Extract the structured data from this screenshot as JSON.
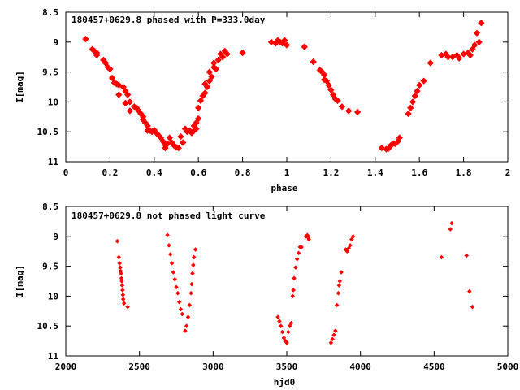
{
  "chart_data": [
    {
      "type": "scatter",
      "title": "180457+0629.8 phased with P=333.0day",
      "xlabel": "phase",
      "ylabel": "I[mag]",
      "xlim": [
        0,
        2
      ],
      "ylim": [
        8.5,
        11
      ],
      "y_inverted": true,
      "x_ticks": [
        "0",
        "0.2",
        "0.4",
        "0.6",
        "0.8",
        "1",
        "1.2",
        "1.4",
        "1.6",
        "1.8",
        "2"
      ],
      "y_ticks": [
        "8.5",
        "9",
        "9.5",
        "10",
        "10.5",
        "11"
      ],
      "grid": false,
      "marker_color": "#ff0000",
      "marker": "diamond-large",
      "series": [
        {
          "points": [
            [
              0.09,
              8.95
            ],
            [
              0.12,
              9.12
            ],
            [
              0.13,
              9.15
            ],
            [
              0.14,
              9.18
            ],
            [
              0.14,
              9.22
            ],
            [
              0.17,
              9.3
            ],
            [
              0.18,
              9.35
            ],
            [
              0.19,
              9.42
            ],
            [
              0.2,
              9.45
            ],
            [
              0.21,
              9.6
            ],
            [
              0.22,
              9.68
            ],
            [
              0.23,
              9.7
            ],
            [
              0.24,
              9.72
            ],
            [
              0.24,
              9.88
            ],
            [
              0.26,
              9.75
            ],
            [
              0.27,
              9.82
            ],
            [
              0.27,
              10.02
            ],
            [
              0.28,
              9.88
            ],
            [
              0.29,
              10.0
            ],
            [
              0.29,
              10.15
            ],
            [
              0.31,
              10.08
            ],
            [
              0.32,
              10.1
            ],
            [
              0.33,
              10.15
            ],
            [
              0.34,
              10.2
            ],
            [
              0.35,
              10.25
            ],
            [
              0.35,
              10.3
            ],
            [
              0.36,
              10.35
            ],
            [
              0.37,
              10.4
            ],
            [
              0.37,
              10.48
            ],
            [
              0.38,
              10.48
            ],
            [
              0.39,
              10.5
            ],
            [
              0.4,
              10.47
            ],
            [
              0.41,
              10.52
            ],
            [
              0.42,
              10.56
            ],
            [
              0.43,
              10.6
            ],
            [
              0.44,
              10.66
            ],
            [
              0.45,
              10.72
            ],
            [
              0.45,
              10.77
            ],
            [
              0.46,
              10.7
            ],
            [
              0.47,
              10.6
            ],
            [
              0.48,
              10.68
            ],
            [
              0.49,
              10.73
            ],
            [
              0.5,
              10.76
            ],
            [
              0.51,
              10.77
            ],
            [
              0.52,
              10.58
            ],
            [
              0.53,
              10.68
            ],
            [
              0.54,
              10.45
            ],
            [
              0.55,
              10.5
            ],
            [
              0.56,
              10.48
            ],
            [
              0.57,
              10.52
            ],
            [
              0.58,
              10.48
            ],
            [
              0.58,
              10.4
            ],
            [
              0.59,
              10.45
            ],
            [
              0.59,
              10.35
            ],
            [
              0.6,
              10.28
            ],
            [
              0.6,
              10.1
            ],
            [
              0.61,
              9.98
            ],
            [
              0.62,
              9.9
            ],
            [
              0.63,
              9.85
            ],
            [
              0.63,
              9.7
            ],
            [
              0.64,
              9.75
            ],
            [
              0.65,
              9.65
            ],
            [
              0.65,
              9.5
            ],
            [
              0.66,
              9.58
            ],
            [
              0.67,
              9.42
            ],
            [
              0.67,
              9.35
            ],
            [
              0.68,
              9.45
            ],
            [
              0.69,
              9.3
            ],
            [
              0.7,
              9.2
            ],
            [
              0.71,
              9.25
            ],
            [
              0.72,
              9.15
            ],
            [
              0.73,
              9.2
            ],
            [
              0.8,
              9.18
            ],
            [
              0.93,
              9.0
            ],
            [
              0.95,
              9.02
            ],
            [
              0.96,
              8.97
            ],
            [
              0.97,
              9.0
            ],
            [
              0.98,
              9.02
            ],
            [
              0.99,
              8.97
            ],
            [
              1.0,
              9.05
            ],
            [
              1.08,
              9.08
            ],
            [
              1.12,
              9.33
            ],
            [
              1.15,
              9.47
            ],
            [
              1.16,
              9.5
            ],
            [
              1.17,
              9.55
            ],
            [
              1.17,
              9.63
            ],
            [
              1.18,
              9.65
            ],
            [
              1.19,
              9.72
            ],
            [
              1.2,
              9.8
            ],
            [
              1.21,
              9.88
            ],
            [
              1.22,
              9.95
            ],
            [
              1.23,
              9.98
            ],
            [
              1.25,
              10.08
            ],
            [
              1.28,
              10.15
            ],
            [
              1.32,
              10.17
            ],
            [
              1.43,
              10.77
            ],
            [
              1.45,
              10.79
            ],
            [
              1.46,
              10.78
            ],
            [
              1.47,
              10.73
            ],
            [
              1.48,
              10.7
            ],
            [
              1.49,
              10.7
            ],
            [
              1.5,
              10.67
            ],
            [
              1.51,
              10.6
            ],
            [
              1.55,
              10.2
            ],
            [
              1.56,
              10.1
            ],
            [
              1.57,
              10.0
            ],
            [
              1.58,
              9.9
            ],
            [
              1.59,
              9.82
            ],
            [
              1.6,
              9.72
            ],
            [
              1.62,
              9.65
            ],
            [
              1.65,
              9.35
            ],
            [
              1.7,
              9.22
            ],
            [
              1.72,
              9.2
            ],
            [
              1.73,
              9.25
            ],
            [
              1.75,
              9.25
            ],
            [
              1.77,
              9.22
            ],
            [
              1.78,
              9.27
            ],
            [
              1.8,
              9.2
            ],
            [
              1.82,
              9.18
            ],
            [
              1.83,
              9.22
            ],
            [
              1.84,
              9.12
            ],
            [
              1.85,
              9.05
            ],
            [
              1.86,
              8.85
            ],
            [
              1.87,
              9.0
            ],
            [
              1.88,
              8.68
            ]
          ]
        }
      ]
    },
    {
      "type": "scatter",
      "title": "180457+0629.8 not phased light curve",
      "xlabel": "hjd0",
      "ylabel": "I[mag]",
      "xlim": [
        2000,
        5000
      ],
      "ylim": [
        8.5,
        11
      ],
      "y_inverted": true,
      "x_ticks": [
        "2000",
        "2500",
        "3000",
        "3500",
        "4000",
        "4500",
        "5000"
      ],
      "y_ticks": [
        "8.5",
        "9",
        "9.5",
        "10",
        "10.5",
        "11"
      ],
      "grid": false,
      "marker_color": "#ff0000",
      "marker": "diamond-small",
      "series": [
        {
          "points": [
            [
              2350,
              9.08
            ],
            [
              2360,
              9.35
            ],
            [
              2365,
              9.45
            ],
            [
              2370,
              9.52
            ],
            [
              2372,
              9.58
            ],
            [
              2375,
              9.62
            ],
            [
              2378,
              9.7
            ],
            [
              2380,
              9.75
            ],
            [
              2383,
              9.82
            ],
            [
              2385,
              9.9
            ],
            [
              2388,
              9.98
            ],
            [
              2390,
              10.05
            ],
            [
              2395,
              10.12
            ],
            [
              2420,
              10.18
            ],
            [
              2690,
              8.98
            ],
            [
              2700,
              9.15
            ],
            [
              2710,
              9.3
            ],
            [
              2720,
              9.45
            ],
            [
              2730,
              9.6
            ],
            [
              2740,
              9.72
            ],
            [
              2750,
              9.85
            ],
            [
              2760,
              9.95
            ],
            [
              2770,
              10.1
            ],
            [
              2780,
              10.22
            ],
            [
              2790,
              10.3
            ],
            [
              2810,
              10.58
            ],
            [
              2820,
              10.5
            ],
            [
              2830,
              10.35
            ],
            [
              2840,
              10.15
            ],
            [
              2850,
              9.95
            ],
            [
              2855,
              9.8
            ],
            [
              2860,
              9.62
            ],
            [
              2865,
              9.48
            ],
            [
              2870,
              9.35
            ],
            [
              2880,
              9.22
            ],
            [
              3440,
              10.35
            ],
            [
              3450,
              10.42
            ],
            [
              3460,
              10.5
            ],
            [
              3470,
              10.6
            ],
            [
              3480,
              10.7
            ],
            [
              3490,
              10.75
            ],
            [
              3500,
              10.78
            ],
            [
              3510,
              10.6
            ],
            [
              3520,
              10.5
            ],
            [
              3530,
              10.45
            ],
            [
              3540,
              10.0
            ],
            [
              3545,
              9.9
            ],
            [
              3550,
              9.7
            ],
            [
              3560,
              9.52
            ],
            [
              3570,
              9.38
            ],
            [
              3580,
              9.28
            ],
            [
              3590,
              9.18
            ],
            [
              3600,
              9.18
            ],
            [
              3630,
              9.0
            ],
            [
              3640,
              8.98
            ],
            [
              3645,
              9.02
            ],
            [
              3650,
              9.05
            ],
            [
              3800,
              10.78
            ],
            [
              3810,
              10.72
            ],
            [
              3820,
              10.65
            ],
            [
              3830,
              10.58
            ],
            [
              3840,
              10.15
            ],
            [
              3850,
              9.95
            ],
            [
              3855,
              9.82
            ],
            [
              3860,
              9.75
            ],
            [
              3870,
              9.6
            ],
            [
              3900,
              9.22
            ],
            [
              3910,
              9.25
            ],
            [
              3920,
              9.2
            ],
            [
              3930,
              9.15
            ],
            [
              3940,
              9.05
            ],
            [
              3950,
              9.0
            ],
            [
              4550,
              9.35
            ],
            [
              4610,
              8.88
            ],
            [
              4620,
              8.78
            ],
            [
              4720,
              9.32
            ],
            [
              4740,
              9.92
            ],
            [
              4760,
              10.18
            ]
          ]
        }
      ]
    }
  ]
}
